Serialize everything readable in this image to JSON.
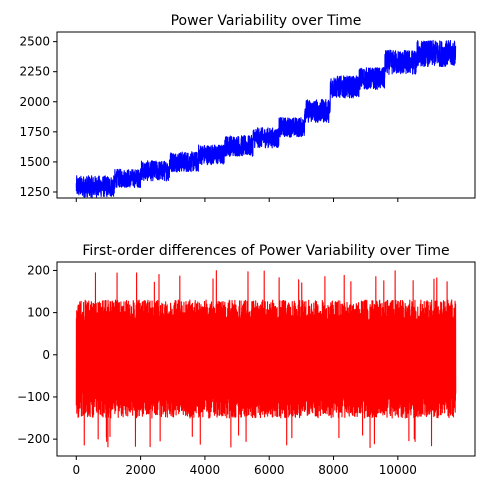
{
  "chart_data": [
    {
      "type": "line",
      "title": "Power Variability over Time",
      "xlabel": "",
      "ylabel": "",
      "series": [
        {
          "color": "#0000ff",
          "x_range": [
            0,
            11800
          ],
          "level_segments": [
            {
              "x": [
                0,
                1200
              ],
              "low": 1205,
              "high": 1385
            },
            {
              "x": [
                1200,
                2000
              ],
              "low": 1285,
              "high": 1440
            },
            {
              "x": [
                2000,
                2900
              ],
              "low": 1340,
              "high": 1510
            },
            {
              "x": [
                2900,
                3800
              ],
              "low": 1415,
              "high": 1585
            },
            {
              "x": [
                3800,
                4600
              ],
              "low": 1475,
              "high": 1645
            },
            {
              "x": [
                4600,
                5500
              ],
              "low": 1545,
              "high": 1720
            },
            {
              "x": [
                5500,
                6300
              ],
              "low": 1615,
              "high": 1785
            },
            {
              "x": [
                6300,
                7100
              ],
              "low": 1705,
              "high": 1870
            },
            {
              "x": [
                7100,
                7900
              ],
              "low": 1825,
              "high": 2020
            },
            {
              "x": [
                7900,
                8800
              ],
              "low": 2030,
              "high": 2215
            },
            {
              "x": [
                8800,
                9600
              ],
              "low": 2100,
              "high": 2285
            },
            {
              "x": [
                9600,
                10600
              ],
              "low": 2225,
              "high": 2430
            },
            {
              "x": [
                10600,
                11800
              ],
              "low": 2290,
              "high": 2510
            }
          ]
        }
      ],
      "xlim": [
        -600,
        12400
      ],
      "ylim": [
        1200,
        2580
      ],
      "yticks": [
        1250,
        1500,
        1750,
        2000,
        2250,
        2500
      ],
      "xticks": [
        0,
        2000,
        4000,
        6000,
        8000,
        10000
      ],
      "show_xtick_labels": false,
      "grid": false
    },
    {
      "type": "line",
      "title": "First-order differences of Power Variability over Time",
      "xlabel": "",
      "ylabel": "",
      "series": [
        {
          "color": "#ff0000",
          "x_range": [
            0,
            11800
          ],
          "band": {
            "low": -150,
            "high": 130
          },
          "extremes": {
            "min": -220,
            "max": 200
          }
        }
      ],
      "xlim": [
        -600,
        12400
      ],
      "ylim": [
        -240,
        220
      ],
      "yticks": [
        -200,
        -100,
        0,
        100,
        200
      ],
      "xticks": [
        0,
        2000,
        4000,
        6000,
        8000,
        10000
      ],
      "show_xtick_labels": true,
      "grid": false
    }
  ]
}
